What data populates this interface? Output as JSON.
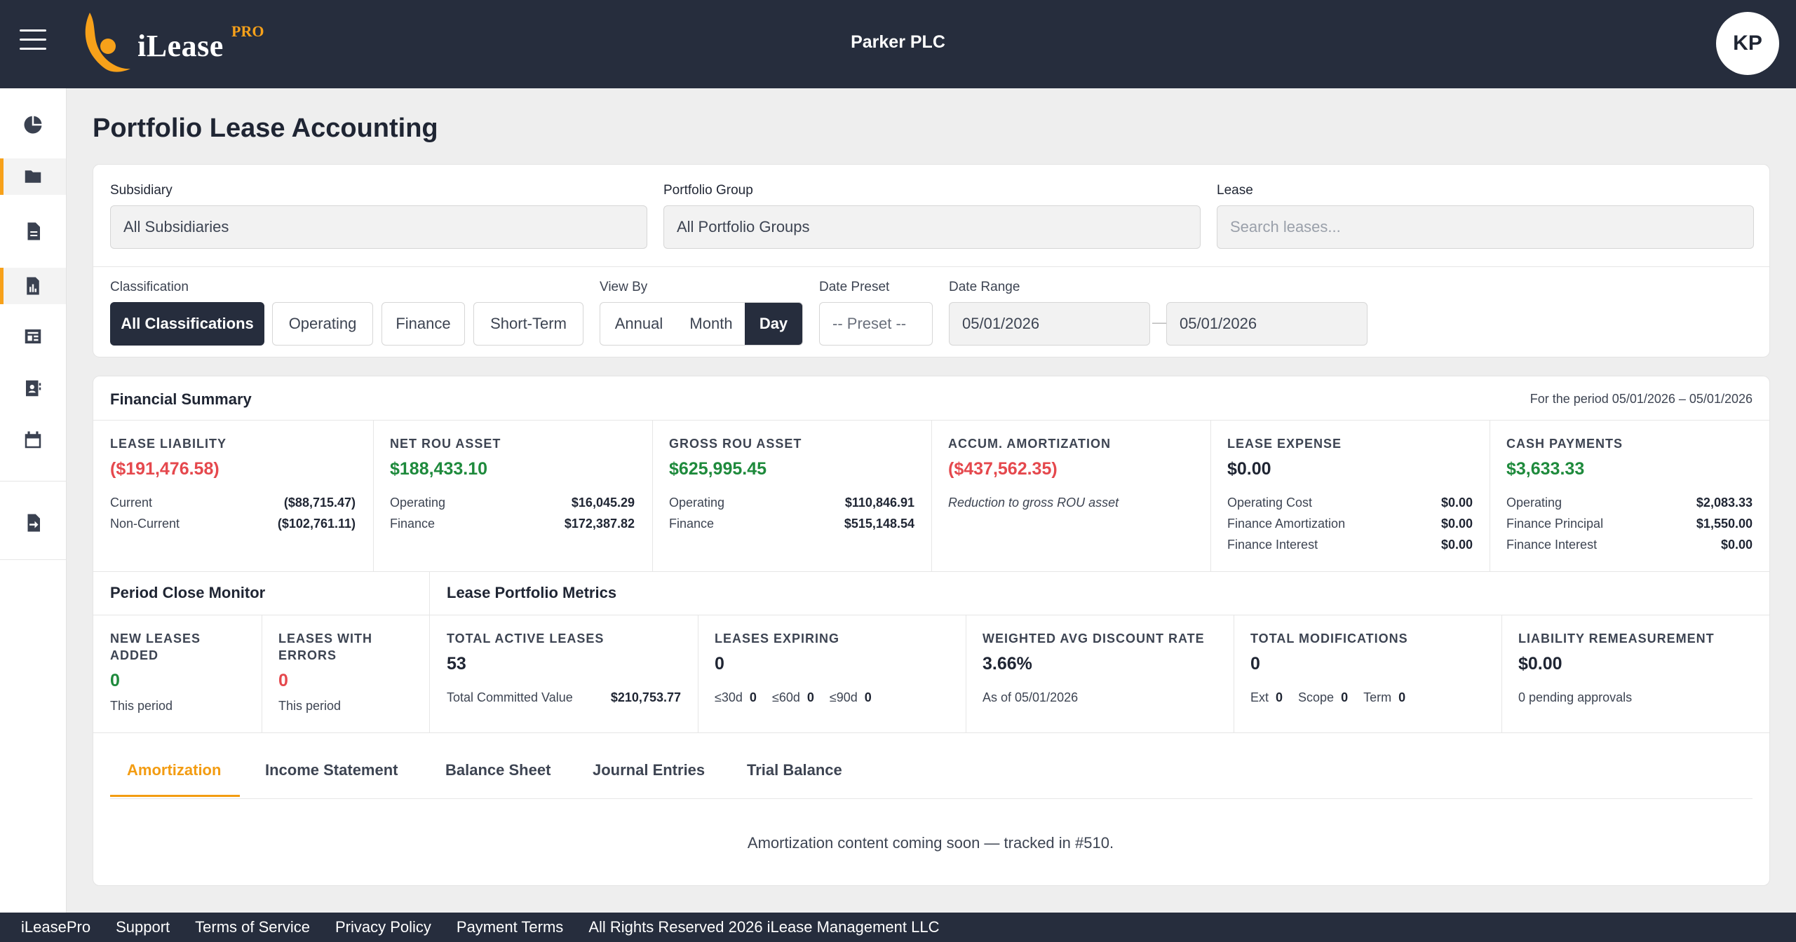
{
  "header": {
    "logo_text": "iLease",
    "logo_badge": "PRO",
    "company": "Parker PLC",
    "avatar_initials": "KP"
  },
  "rail": {
    "icons": [
      "dashboard-icon",
      "folder-icon",
      "document-icon",
      "report-icon",
      "ledger-icon",
      "contacts-icon",
      "calendar-icon",
      "export-icon"
    ],
    "active": [
      "folder-icon",
      "report-icon"
    ]
  },
  "page": {
    "title": "Portfolio Lease Accounting"
  },
  "filters": {
    "subsidiary_label": "Subsidiary",
    "subsidiary_value": "All Subsidiaries",
    "portfolio_label": "Portfolio Group",
    "portfolio_value": "All Portfolio Groups",
    "lease_label": "Lease",
    "lease_placeholder": "Search leases...",
    "classification_label": "Classification",
    "classifications": [
      "All Classifications",
      "Operating",
      "Finance",
      "Short-Term"
    ],
    "classification_selected": "All Classifications",
    "viewby_label": "View By",
    "viewby_options": [
      "Annual",
      "Month",
      "Day"
    ],
    "viewby_selected": "Day",
    "date_preset_label": "Date Preset",
    "date_preset_value": "-- Preset --",
    "date_range_label": "Date Range",
    "date_from": "05/01/2026",
    "date_sep": "—",
    "date_to": "05/01/2026"
  },
  "financial_summary": {
    "title": "Financial Summary",
    "period_text": "For the period 05/01/2026 – 05/01/2026",
    "metrics": [
      {
        "label": "Lease Liability",
        "value": "($191,476.58)",
        "rows": [
          [
            "Current",
            "($88,715.47)"
          ],
          [
            "Non-Current",
            "($102,761.11)"
          ]
        ]
      },
      {
        "label": "Net ROU Asset",
        "value": "$188,433.10",
        "rows": [
          [
            "Operating",
            "$16,045.29"
          ],
          [
            "Finance",
            "$172,387.82"
          ]
        ]
      },
      {
        "label": "Gross ROU Asset",
        "value": "$625,995.45",
        "rows": [
          [
            "Operating",
            "$110,846.91"
          ],
          [
            "Finance",
            "$515,148.54"
          ]
        ]
      },
      {
        "label": "Accum. Amortization",
        "value": "($437,562.35)",
        "note": "Reduction to gross ROU asset"
      },
      {
        "label": "Lease Expense",
        "value": "$0.00",
        "rows": [
          [
            "Operating Cost",
            "$0.00"
          ],
          [
            "Finance Amortization",
            "$0.00"
          ],
          [
            "Finance Interest",
            "$0.00"
          ]
        ]
      },
      {
        "label": "Cash Payments",
        "value": "$3,633.33",
        "rows": [
          [
            "Operating",
            "$2,083.33"
          ],
          [
            "Finance Principal",
            "$1,550.00"
          ],
          [
            "Finance Interest",
            "$0.00"
          ]
        ]
      }
    ],
    "colors": {
      "negative": "#e5484d",
      "positive": "#1e8a3c"
    }
  },
  "period_close": {
    "title": "Period Close Monitor",
    "new_label_1": "New Leases",
    "new_label_2": "Added",
    "new_value": "0",
    "new_sub": "This period",
    "err_label_1": "Leases With",
    "err_label_2": "Errors",
    "err_value": "0",
    "err_sub": "This period"
  },
  "portfolio_metrics": {
    "title": "Lease Portfolio Metrics",
    "active_label": "Total Active Leases",
    "active_value": "53",
    "committed_label": "Total Committed Value",
    "committed_value": "$210,753.77",
    "expiring_label": "Leases Expiring",
    "expiring_value": "0",
    "exp_30_label": "≤30d",
    "exp_30": "0",
    "exp_60_label": "≤60d",
    "exp_60": "0",
    "exp_90_label": "≤90d",
    "exp_90": "0",
    "rate_label": "Weighted Avg Discount Rate",
    "rate_value": "3.66%",
    "rate_sub": "As of 05/01/2026",
    "mods_label": "Total Modifications",
    "mods_value": "0",
    "ext_label": "Ext",
    "ext_value": "0",
    "scope_label": "Scope",
    "scope_value": "0",
    "term_label": "Term",
    "term_value": "0",
    "remeas_label": "Liability Remeasurement",
    "remeas_value": "$0.00",
    "remeas_sub": "0 pending approvals"
  },
  "tabs": {
    "items": [
      "Amortization",
      "Income Statement",
      "Balance Sheet",
      "Journal Entries",
      "Trial Balance"
    ],
    "active": "Amortization",
    "content": "Amortization content coming soon — tracked in #510.",
    "accent": "#f39c12"
  },
  "footer": {
    "links": [
      "iLeasePro",
      "Support",
      "Terms of Service",
      "Privacy Policy",
      "Payment Terms"
    ],
    "copyright": "All Rights Reserved 2026 iLease Management LLC"
  }
}
